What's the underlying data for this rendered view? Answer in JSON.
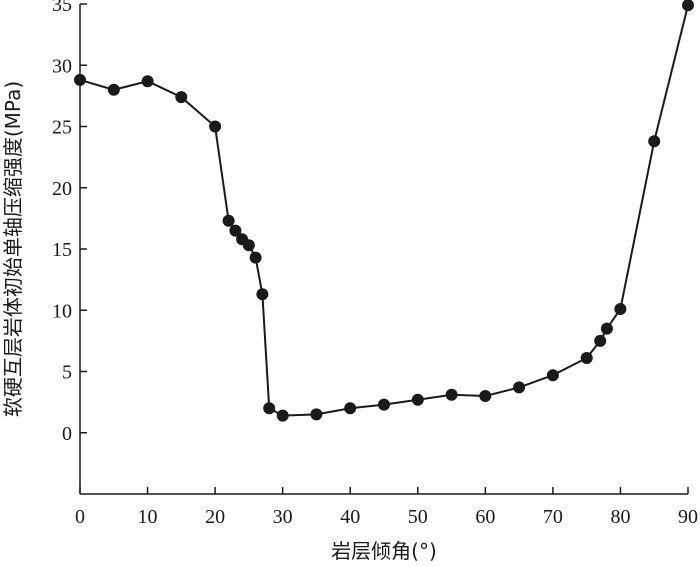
{
  "chart_data": {
    "type": "line",
    "title": "",
    "xlabel": "岩层倾角(°)",
    "ylabel": "软硬互层岩体初始单轴压缩强度(MPa)",
    "xlim": [
      0,
      90
    ],
    "ylim": [
      -5,
      35
    ],
    "xticks": [
      0,
      10,
      20,
      30,
      40,
      50,
      60,
      70,
      80,
      90
    ],
    "yticks": [
      0,
      5,
      10,
      15,
      20,
      25,
      30,
      35
    ],
    "grid": false,
    "legend": "none",
    "colors": {
      "line": "#1a1a1a",
      "marker": "#1a1a1a",
      "axis": "#1a1a1a"
    },
    "series": [
      {
        "x": [
          0,
          5,
          10,
          15,
          20,
          22,
          23,
          24,
          25,
          26,
          27,
          28,
          30,
          35,
          40,
          45,
          50,
          55,
          60,
          65,
          70,
          75,
          77,
          78,
          80,
          85,
          90
        ],
        "y": [
          28.8,
          28.0,
          28.7,
          27.4,
          25.0,
          17.3,
          16.5,
          15.8,
          15.3,
          14.3,
          11.3,
          2.0,
          1.4,
          1.5,
          2.0,
          2.3,
          2.7,
          3.1,
          3.0,
          3.7,
          4.7,
          6.1,
          7.5,
          8.5,
          10.1,
          23.8,
          34.9
        ]
      }
    ]
  }
}
